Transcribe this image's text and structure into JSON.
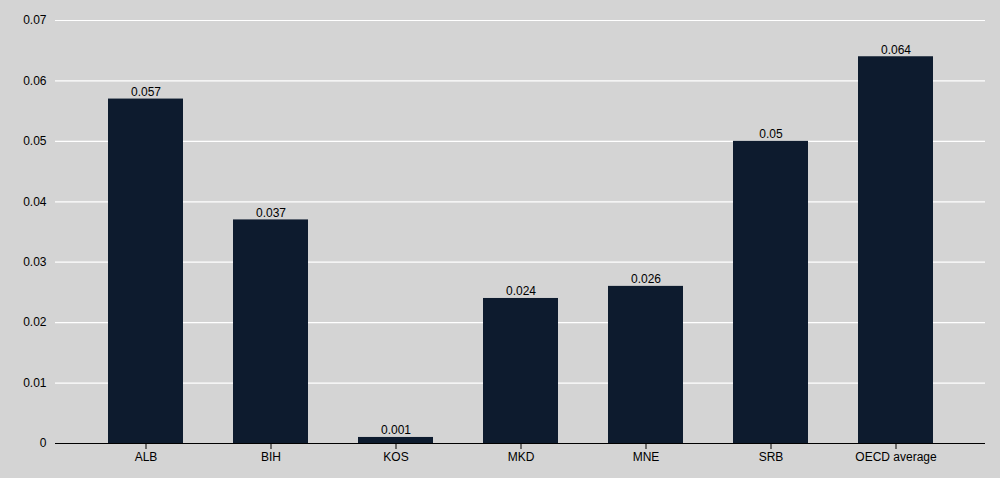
{
  "chart_data": {
    "type": "bar",
    "categories": [
      "ALB",
      "BIH",
      "KOS",
      "MKD",
      "MNE",
      "SRB",
      "OECD average"
    ],
    "values": [
      0.057,
      0.037,
      0.001,
      0.024,
      0.026,
      0.05,
      0.064
    ],
    "color": "#0d1b2e",
    "ylim": [
      0,
      0.07
    ],
    "yticks": [
      0,
      0.01,
      0.02,
      0.03,
      0.04,
      0.05,
      0.06,
      0.07
    ],
    "grid": true,
    "data_labels": true
  }
}
